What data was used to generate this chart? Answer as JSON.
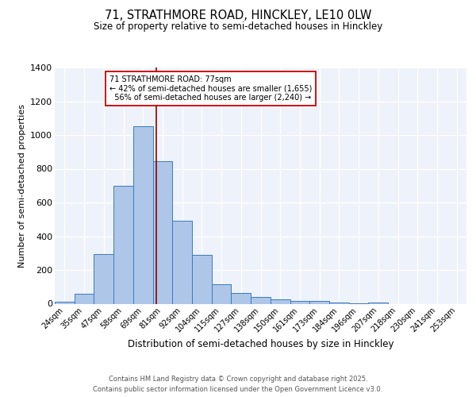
{
  "title_line1": "71, STRATHMORE ROAD, HINCKLEY, LE10 0LW",
  "title_line2": "Size of property relative to semi-detached houses in Hinckley",
  "xlabel": "Distribution of semi-detached houses by size in Hinckley",
  "ylabel": "Number of semi-detached properties",
  "categories": [
    "24sqm",
    "35sqm",
    "47sqm",
    "58sqm",
    "69sqm",
    "81sqm",
    "92sqm",
    "104sqm",
    "115sqm",
    "127sqm",
    "138sqm",
    "150sqm",
    "161sqm",
    "173sqm",
    "184sqm",
    "196sqm",
    "207sqm",
    "218sqm",
    "230sqm",
    "241sqm",
    "253sqm"
  ],
  "values": [
    10,
    60,
    295,
    700,
    1050,
    845,
    490,
    290,
    115,
    65,
    40,
    28,
    18,
    15,
    8,
    3,
    8,
    0,
    0,
    0,
    0
  ],
  "bar_color": "#aec6e8",
  "bar_edge_color": "#3a7abf",
  "property_label": "71 STRATHMORE ROAD: 77sqm",
  "pct_smaller": "42%",
  "pct_larger": "56%",
  "count_smaller": "1,655",
  "count_larger": "2,240",
  "vline_color": "#8b0000",
  "annotation_box_color": "#ffffff",
  "annotation_box_edge": "#cc0000",
  "ylim": [
    0,
    1400
  ],
  "yticks": [
    0,
    200,
    400,
    600,
    800,
    1000,
    1200,
    1400
  ],
  "background_color": "#eef2fa",
  "footer_line1": "Contains HM Land Registry data © Crown copyright and database right 2025.",
  "footer_line2": "Contains public sector information licensed under the Open Government Licence v3.0."
}
